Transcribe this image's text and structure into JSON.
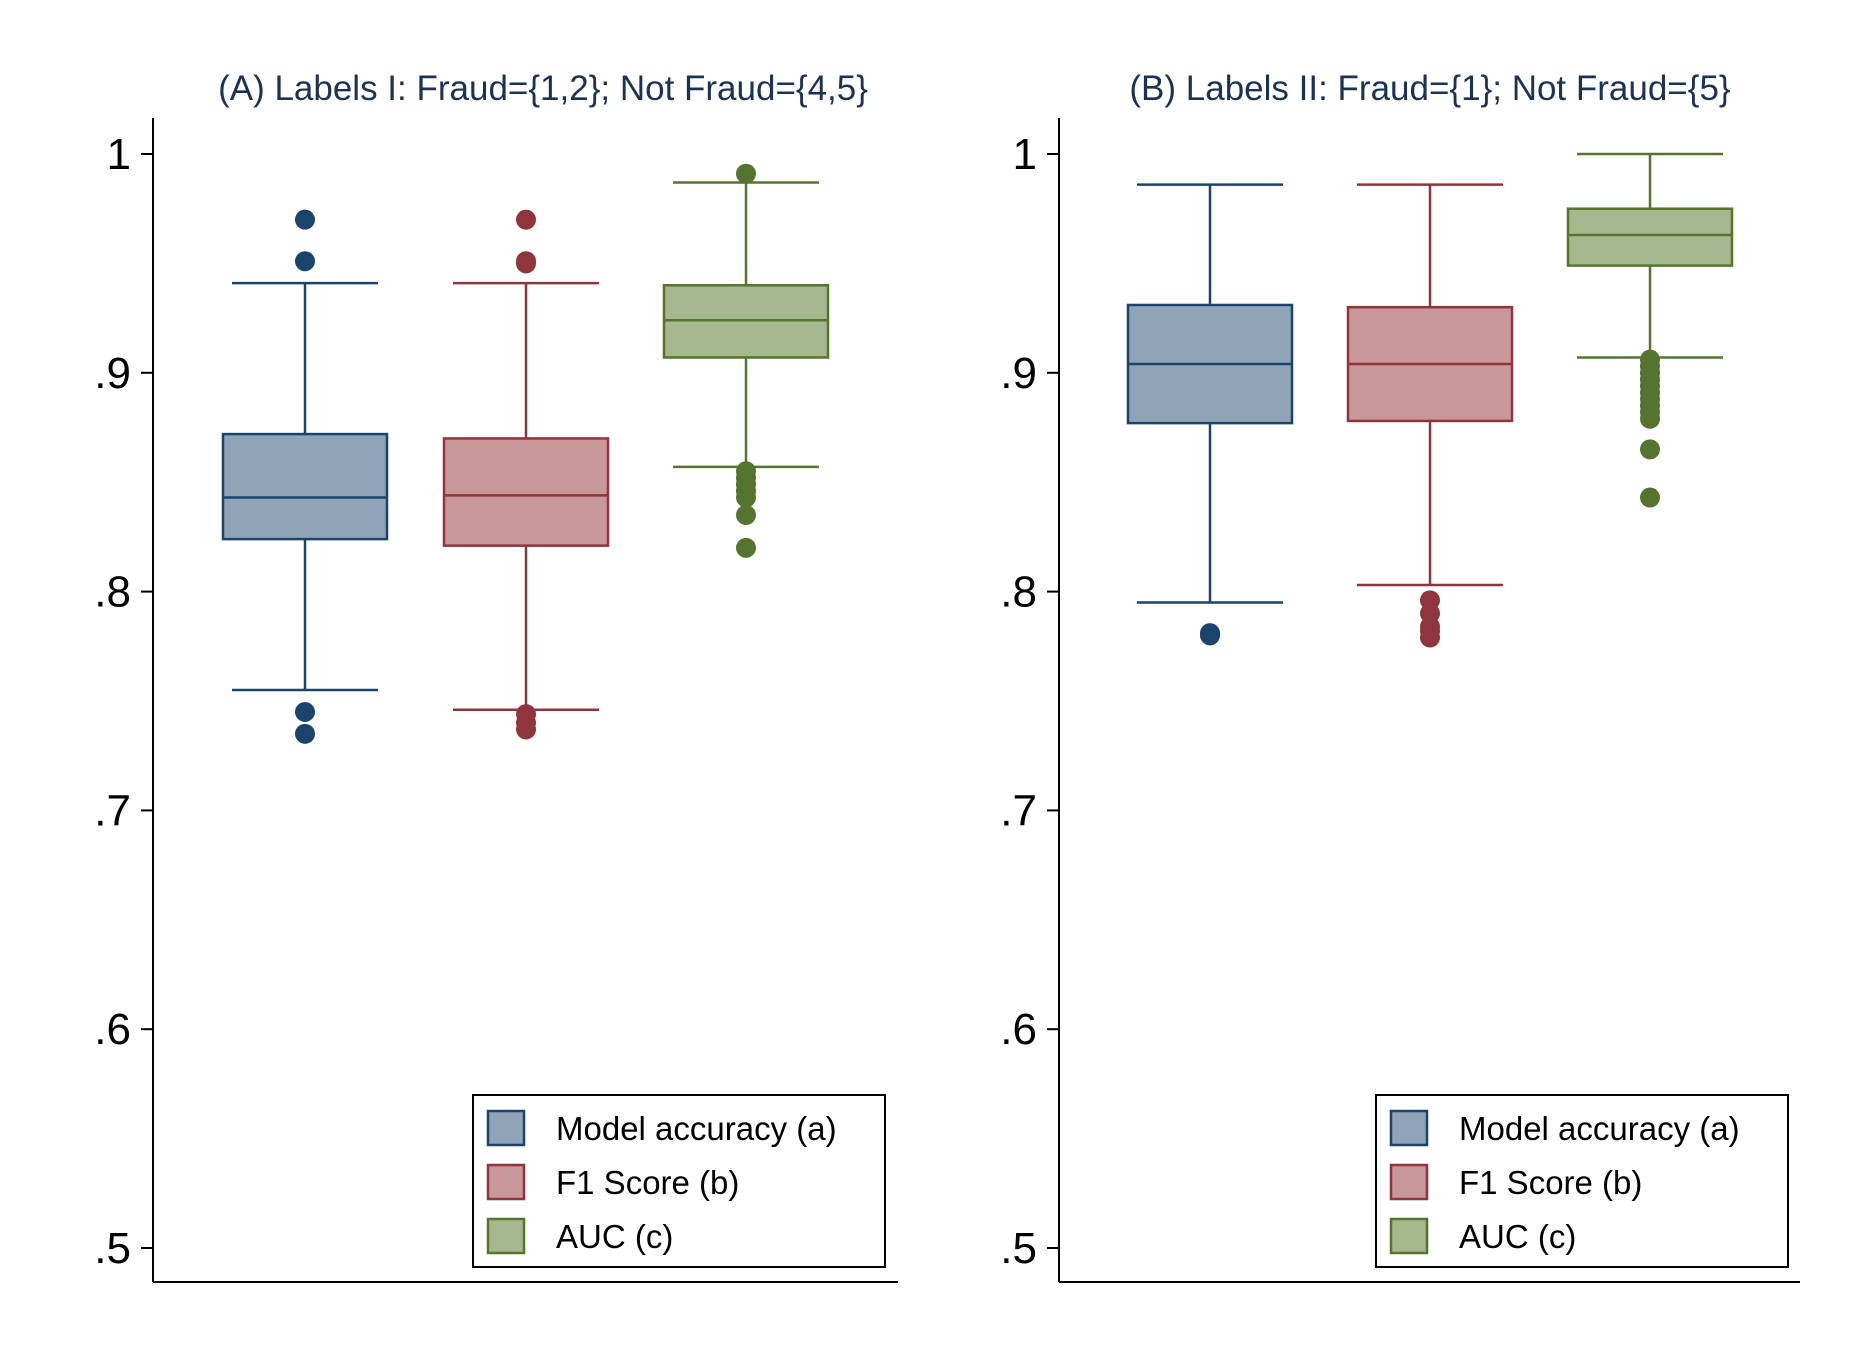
{
  "chart_data": [
    {
      "type": "box",
      "title": "(A) Labels I: Fraud={1,2}; Not Fraud={4,5}",
      "xlabel": "",
      "ylabel": "",
      "ylim": [
        0.487,
        1.017
      ],
      "yticks": [
        1,
        0.9,
        0.8,
        0.7,
        0.6,
        0.5
      ],
      "ytick_labels": [
        "1",
        ".9",
        ".8",
        ".7",
        ".6",
        ".5"
      ],
      "grid": false,
      "legend_position": "bottom-right",
      "series": [
        {
          "name": "Model accuracy (a)",
          "whisker_low": 0.755,
          "q1": 0.824,
          "median": 0.843,
          "q3": 0.872,
          "whisker_high": 0.941,
          "outliers": [
            0.97,
            0.951,
            0.745,
            0.735
          ]
        },
        {
          "name": "F1 Score (b)",
          "whisker_low": 0.746,
          "q1": 0.821,
          "median": 0.844,
          "q3": 0.87,
          "whisker_high": 0.941,
          "outliers": [
            0.97,
            0.951,
            0.95,
            0.744,
            0.74,
            0.737
          ]
        },
        {
          "name": "AUC (c)",
          "whisker_low": 0.857,
          "q1": 0.907,
          "median": 0.924,
          "q3": 0.94,
          "whisker_high": 0.987,
          "outliers": [
            0.991,
            0.855,
            0.852,
            0.849,
            0.846,
            0.843,
            0.835,
            0.82
          ]
        }
      ]
    },
    {
      "type": "box",
      "title": "(B) Labels II: Fraud={1}; Not Fraud={5}",
      "xlabel": "",
      "ylabel": "",
      "ylim": [
        0.487,
        1.017
      ],
      "yticks": [
        1,
        0.9,
        0.8,
        0.7,
        0.6,
        0.5
      ],
      "ytick_labels": [
        "1",
        ".9",
        ".8",
        ".7",
        ".6",
        ".5"
      ],
      "grid": false,
      "legend_position": "bottom-right",
      "series": [
        {
          "name": "Model accuracy (a)",
          "whisker_low": 0.795,
          "q1": 0.877,
          "median": 0.904,
          "q3": 0.931,
          "whisker_high": 0.986,
          "outliers": [
            0.781,
            0.78
          ]
        },
        {
          "name": "F1 Score (b)",
          "whisker_low": 0.803,
          "q1": 0.878,
          "median": 0.904,
          "q3": 0.93,
          "whisker_high": 0.986,
          "outliers": [
            0.796,
            0.79,
            0.784,
            0.782,
            0.779
          ]
        },
        {
          "name": "AUC (c)",
          "whisker_low": 0.907,
          "q1": 0.949,
          "median": 0.963,
          "q3": 0.975,
          "whisker_high": 1.0,
          "outliers": [
            0.906,
            0.903,
            0.9,
            0.897,
            0.894,
            0.891,
            0.888,
            0.885,
            0.882,
            0.879,
            0.865,
            0.843
          ]
        }
      ]
    }
  ],
  "colors": {
    "accuracy_fill": "#90a4b8",
    "accuracy_line": "#1a446c",
    "f1_fill": "#c8979a",
    "f1_line": "#90353b",
    "auc_fill": "#a8b88e",
    "auc_line": "#55752f",
    "title": "#1a3355",
    "axis": "#000000"
  }
}
